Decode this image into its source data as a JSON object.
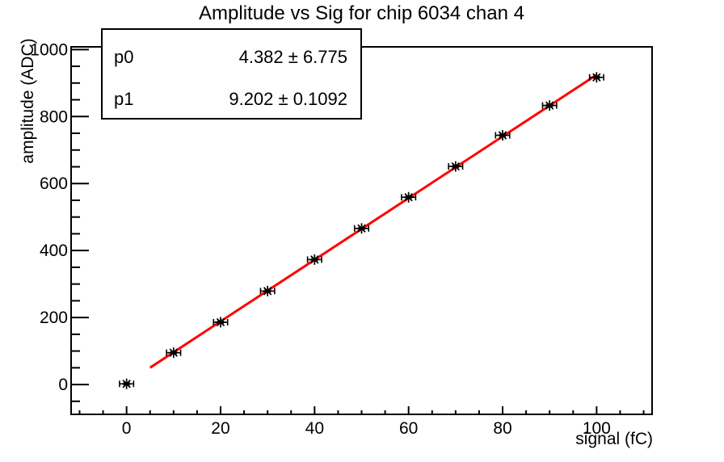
{
  "title": "Amplitude vs Sig for chip 6034 chan 4",
  "stats_box": {
    "rows": [
      {
        "name": "p0",
        "value": "4.382 ± 6.775"
      },
      {
        "name": "p1",
        "value": "9.202 ± 0.1092"
      }
    ]
  },
  "chart_data": {
    "type": "scatter",
    "title": "Amplitude vs Sig for chip 6034 chan 4",
    "xlabel": "signal (fC)",
    "ylabel": "amplitude (ADC)",
    "x": [
      0,
      10,
      20,
      30,
      40,
      50,
      60,
      70,
      80,
      90,
      100
    ],
    "y": [
      2,
      95,
      186,
      279,
      373,
      466,
      559,
      651,
      744,
      833,
      917
    ],
    "x_error": 1.5,
    "y_error": 3,
    "marker": "asterisk",
    "marker_color": "#000000",
    "xlim": [
      -11.8,
      111.8
    ],
    "ylim": [
      -89,
      1008
    ],
    "x_major_ticks": [
      0,
      20,
      40,
      60,
      80,
      100
    ],
    "y_major_ticks": [
      0,
      200,
      400,
      600,
      800,
      1000
    ],
    "x_minor_step": 5,
    "y_minor_step": 50,
    "grid": false,
    "legend": null,
    "fit": {
      "label_p0": "p0",
      "p0": 4.382,
      "p0_error": 6.775,
      "label_p1": "p1",
      "p1": 9.202,
      "p1_error": 0.1092,
      "range": [
        5,
        100
      ],
      "color": "#ff0000"
    },
    "frame_color": "#000000",
    "background_color": "#ffffff"
  }
}
